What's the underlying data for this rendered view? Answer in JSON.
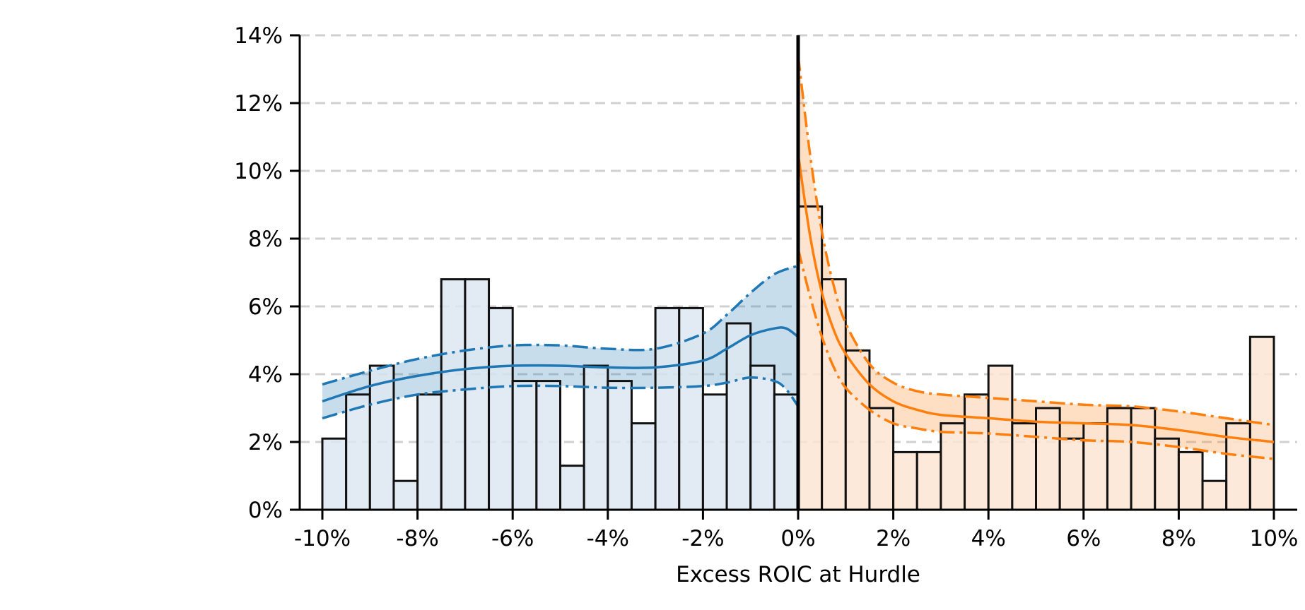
{
  "chart_data": {
    "type": "bar",
    "xlabel": "Excess ROIC at Hurdle",
    "ylabel": "",
    "xlim": [
      -10,
      10
    ],
    "ylim": [
      0,
      14
    ],
    "grid": {
      "y": true,
      "style": "dashed"
    },
    "x_ticks": [
      -10,
      -8,
      -6,
      -4,
      -2,
      0,
      2,
      4,
      6,
      8,
      10
    ],
    "x_tick_labels": [
      "-10%",
      "-8%",
      "-6%",
      "-4%",
      "-2%",
      "0%",
      "2%",
      "4%",
      "6%",
      "8%",
      "10%"
    ],
    "y_ticks": [
      0,
      2,
      4,
      6,
      8,
      10,
      12,
      14
    ],
    "y_tick_labels": [
      "0%",
      "2%",
      "4%",
      "6%",
      "8%",
      "10%",
      "12%",
      "14%"
    ],
    "bin_width": 0.5,
    "series": [
      {
        "side": "negative",
        "color": "#1f77b4",
        "fill": "#dde8f1",
        "bin_starts": [
          -10,
          -9.5,
          -9,
          -8.5,
          -8,
          -7.5,
          -7,
          -6.5,
          -6,
          -5.5,
          -5,
          -4.5,
          -4,
          -3.5,
          -3,
          -2.5,
          -2,
          -1.5,
          -1,
          -0.5
        ],
        "values": [
          2.1,
          3.4,
          4.25,
          0.85,
          3.4,
          6.8,
          6.8,
          5.95,
          3.8,
          3.8,
          1.3,
          4.25,
          3.8,
          2.55,
          5.95,
          5.95,
          3.4,
          5.5,
          4.25,
          3.4
        ],
        "fit": {
          "x": [
            -10,
            -9,
            -8,
            -7,
            -6,
            -5,
            -4,
            -3,
            -2,
            -1.5,
            -1,
            -0.5,
            -0.25,
            0
          ],
          "y": [
            3.2,
            3.65,
            3.95,
            4.15,
            4.25,
            4.25,
            4.2,
            4.2,
            4.4,
            4.75,
            5.15,
            5.35,
            5.35,
            5.1
          ]
        },
        "band_upper": {
          "x": [
            -10,
            -9,
            -8,
            -7,
            -6,
            -5,
            -4,
            -3,
            -2,
            -1.5,
            -1,
            -0.5,
            0
          ],
          "y": [
            3.7,
            4.1,
            4.45,
            4.7,
            4.85,
            4.85,
            4.75,
            4.75,
            5.2,
            5.75,
            6.4,
            6.95,
            7.2
          ]
        },
        "band_lower": {
          "x": [
            -10,
            -9,
            -8,
            -7,
            -6,
            -5,
            -4,
            -3,
            -2,
            -1.5,
            -1,
            -0.5,
            -0.25,
            0
          ],
          "y": [
            2.7,
            3.1,
            3.4,
            3.55,
            3.65,
            3.65,
            3.6,
            3.6,
            3.65,
            3.75,
            3.9,
            3.8,
            3.55,
            3.05
          ]
        }
      },
      {
        "side": "positive",
        "color": "#ff7f0e",
        "fill": "#fde5d2",
        "bin_starts": [
          0,
          0.5,
          1,
          1.5,
          2,
          2.5,
          3,
          3.5,
          4,
          4.5,
          5,
          5.5,
          6,
          6.5,
          7,
          7.5,
          8,
          8.5,
          9,
          9.5
        ],
        "values": [
          8.95,
          6.8,
          4.7,
          3.0,
          1.7,
          1.7,
          2.55,
          3.4,
          4.25,
          2.55,
          3.0,
          2.1,
          2.55,
          3.0,
          3.0,
          2.1,
          1.7,
          0.85,
          2.55,
          5.1
        ],
        "fit": {
          "x": [
            0,
            0.25,
            0.5,
            0.75,
            1,
            1.5,
            2,
            2.5,
            3,
            4,
            5,
            6,
            7,
            8,
            9,
            10
          ],
          "y": [
            10.5,
            8.1,
            6.4,
            5.3,
            4.6,
            3.7,
            3.2,
            2.95,
            2.8,
            2.7,
            2.6,
            2.55,
            2.5,
            2.35,
            2.15,
            2.0
          ]
        },
        "band_upper": {
          "x": [
            0,
            0.25,
            0.5,
            0.75,
            1,
            1.5,
            2,
            2.5,
            3,
            4,
            5,
            6,
            7,
            8,
            9,
            10
          ],
          "y": [
            13.4,
            10.5,
            8.2,
            6.6,
            5.5,
            4.3,
            3.75,
            3.5,
            3.4,
            3.3,
            3.2,
            3.1,
            3.05,
            2.9,
            2.7,
            2.5
          ]
        },
        "band_lower": {
          "x": [
            0,
            0.25,
            0.5,
            0.75,
            1,
            1.5,
            2,
            2.5,
            3,
            4,
            5,
            6,
            7,
            8,
            9,
            10
          ],
          "y": [
            7.7,
            6.3,
            5.1,
            4.2,
            3.6,
            2.95,
            2.55,
            2.4,
            2.3,
            2.25,
            2.15,
            2.05,
            2.0,
            1.85,
            1.65,
            1.5
          ]
        }
      }
    ],
    "annotations": [
      {
        "type": "vertical-line",
        "x": 0,
        "color": "#000000"
      }
    ]
  }
}
